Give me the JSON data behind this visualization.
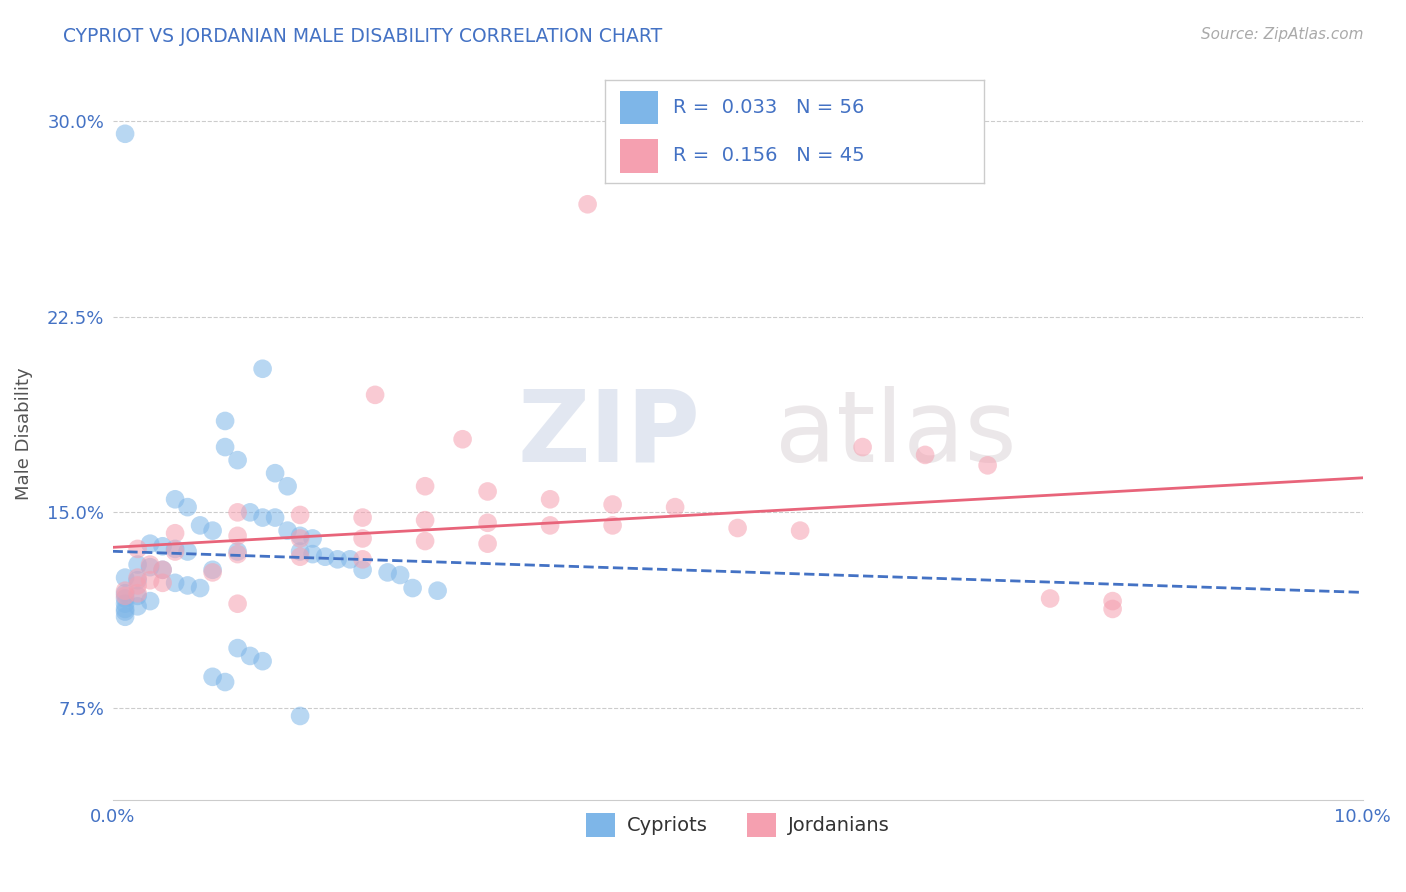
{
  "title": "CYPRIOT VS JORDANIAN MALE DISABILITY CORRELATION CHART",
  "source": "Source: ZipAtlas.com",
  "ylabel_label": "Male Disability",
  "xlim": [
    0.0,
    0.1
  ],
  "ylim": [
    0.04,
    0.32
  ],
  "grid_color": "#cccccc",
  "background_color": "#ffffff",
  "cypriot_color": "#7eb6e8",
  "jordanian_color": "#f5a0b0",
  "cypriot_line_color": "#4472c4",
  "jordanian_line_color": "#e8647a",
  "cypriot_R": 0.033,
  "cypriot_N": 56,
  "jordanian_R": 0.156,
  "jordanian_N": 45,
  "legend_label_cypriot": "Cypriots",
  "legend_label_jordanian": "Jordanians",
  "watermark_zip": "ZIP",
  "watermark_atlas": "atlas",
  "ytick_positions": [
    0.075,
    0.15,
    0.225,
    0.3
  ],
  "ytick_labels": [
    "7.5%",
    "15.0%",
    "22.5%",
    "30.0%"
  ],
  "xtick_positions": [
    0.0,
    0.1
  ],
  "xtick_labels": [
    "0.0%",
    "10.0%"
  ],
  "cypriot_scatter": [
    [
      0.001,
      0.295
    ],
    [
      0.012,
      0.205
    ],
    [
      0.009,
      0.185
    ],
    [
      0.009,
      0.175
    ],
    [
      0.01,
      0.17
    ],
    [
      0.013,
      0.165
    ],
    [
      0.014,
      0.16
    ],
    [
      0.005,
      0.155
    ],
    [
      0.006,
      0.152
    ],
    [
      0.011,
      0.15
    ],
    [
      0.012,
      0.148
    ],
    [
      0.013,
      0.148
    ],
    [
      0.007,
      0.145
    ],
    [
      0.008,
      0.143
    ],
    [
      0.014,
      0.143
    ],
    [
      0.015,
      0.141
    ],
    [
      0.016,
      0.14
    ],
    [
      0.003,
      0.138
    ],
    [
      0.004,
      0.137
    ],
    [
      0.005,
      0.136
    ],
    [
      0.006,
      0.135
    ],
    [
      0.01,
      0.135
    ],
    [
      0.015,
      0.135
    ],
    [
      0.016,
      0.134
    ],
    [
      0.017,
      0.133
    ],
    [
      0.018,
      0.132
    ],
    [
      0.019,
      0.132
    ],
    [
      0.002,
      0.13
    ],
    [
      0.003,
      0.129
    ],
    [
      0.004,
      0.128
    ],
    [
      0.008,
      0.128
    ],
    [
      0.02,
      0.128
    ],
    [
      0.022,
      0.127
    ],
    [
      0.023,
      0.126
    ],
    [
      0.001,
      0.125
    ],
    [
      0.002,
      0.124
    ],
    [
      0.005,
      0.123
    ],
    [
      0.006,
      0.122
    ],
    [
      0.007,
      0.121
    ],
    [
      0.024,
      0.121
    ],
    [
      0.026,
      0.12
    ],
    [
      0.001,
      0.119
    ],
    [
      0.002,
      0.118
    ],
    [
      0.001,
      0.117
    ],
    [
      0.003,
      0.116
    ],
    [
      0.001,
      0.115
    ],
    [
      0.002,
      0.114
    ],
    [
      0.001,
      0.113
    ],
    [
      0.001,
      0.112
    ],
    [
      0.001,
      0.11
    ],
    [
      0.01,
      0.098
    ],
    [
      0.011,
      0.095
    ],
    [
      0.012,
      0.093
    ],
    [
      0.008,
      0.087
    ],
    [
      0.009,
      0.085
    ],
    [
      0.015,
      0.072
    ]
  ],
  "jordanian_scatter": [
    [
      0.038,
      0.268
    ],
    [
      0.021,
      0.195
    ],
    [
      0.028,
      0.178
    ],
    [
      0.06,
      0.175
    ],
    [
      0.065,
      0.172
    ],
    [
      0.07,
      0.168
    ],
    [
      0.025,
      0.16
    ],
    [
      0.03,
      0.158
    ],
    [
      0.035,
      0.155
    ],
    [
      0.04,
      0.153
    ],
    [
      0.045,
      0.152
    ],
    [
      0.01,
      0.15
    ],
    [
      0.015,
      0.149
    ],
    [
      0.02,
      0.148
    ],
    [
      0.025,
      0.147
    ],
    [
      0.03,
      0.146
    ],
    [
      0.035,
      0.145
    ],
    [
      0.04,
      0.145
    ],
    [
      0.05,
      0.144
    ],
    [
      0.055,
      0.143
    ],
    [
      0.005,
      0.142
    ],
    [
      0.01,
      0.141
    ],
    [
      0.015,
      0.14
    ],
    [
      0.02,
      0.14
    ],
    [
      0.025,
      0.139
    ],
    [
      0.03,
      0.138
    ],
    [
      0.002,
      0.136
    ],
    [
      0.005,
      0.135
    ],
    [
      0.01,
      0.134
    ],
    [
      0.015,
      0.133
    ],
    [
      0.02,
      0.132
    ],
    [
      0.003,
      0.13
    ],
    [
      0.004,
      0.128
    ],
    [
      0.008,
      0.127
    ],
    [
      0.002,
      0.125
    ],
    [
      0.003,
      0.124
    ],
    [
      0.004,
      0.123
    ],
    [
      0.002,
      0.122
    ],
    [
      0.001,
      0.12
    ],
    [
      0.002,
      0.119
    ],
    [
      0.001,
      0.118
    ],
    [
      0.075,
      0.117
    ],
    [
      0.08,
      0.116
    ],
    [
      0.01,
      0.115
    ],
    [
      0.08,
      0.113
    ]
  ]
}
